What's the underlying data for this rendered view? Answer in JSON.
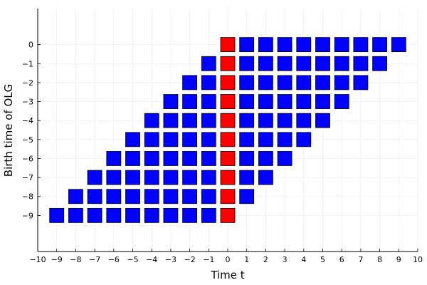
{
  "chart_data": {
    "type": "heatmap",
    "title": "",
    "xlabel": "Time t",
    "ylabel": "Birth time of OLG",
    "xlim": [
      -10,
      10
    ],
    "ylim": [
      -10.9,
      1.9
    ],
    "xticks": [
      -10,
      -9,
      -8,
      -7,
      -6,
      -5,
      -4,
      -3,
      -2,
      -1,
      0,
      1,
      2,
      3,
      4,
      5,
      6,
      7,
      8,
      9,
      10
    ],
    "yticks": [
      -9,
      -8,
      -7,
      -6,
      -5,
      -4,
      -3,
      -2,
      -1,
      0
    ],
    "xtick_labels": [
      "−10",
      "−9",
      "−8",
      "−7",
      "−6",
      "−5",
      "−4",
      "−3",
      "−2",
      "−1",
      "0",
      "1",
      "2",
      "3",
      "4",
      "5",
      "6",
      "7",
      "8",
      "9",
      "10"
    ],
    "ytick_labels": [
      "−9",
      "−8",
      "−7",
      "−6",
      "−5",
      "−4",
      "−3",
      "−2",
      "−1",
      "0"
    ],
    "grid": true,
    "legend": false,
    "colors": {
      "alive": "#0000ff",
      "current": "#ff0000"
    },
    "rows": [
      {
        "birth": -9,
        "t_start": -9,
        "t_end": 0
      },
      {
        "birth": -8,
        "t_start": -8,
        "t_end": 1
      },
      {
        "birth": -7,
        "t_start": -7,
        "t_end": 2
      },
      {
        "birth": -6,
        "t_start": -6,
        "t_end": 3
      },
      {
        "birth": -5,
        "t_start": -5,
        "t_end": 4
      },
      {
        "birth": -4,
        "t_start": -4,
        "t_end": 5
      },
      {
        "birth": -3,
        "t_start": -3,
        "t_end": 6
      },
      {
        "birth": -2,
        "t_start": -2,
        "t_end": 7
      },
      {
        "birth": -1,
        "t_start": -1,
        "t_end": 8
      },
      {
        "birth": 0,
        "t_start": 0,
        "t_end": 9
      }
    ],
    "highlight_time": 0
  }
}
